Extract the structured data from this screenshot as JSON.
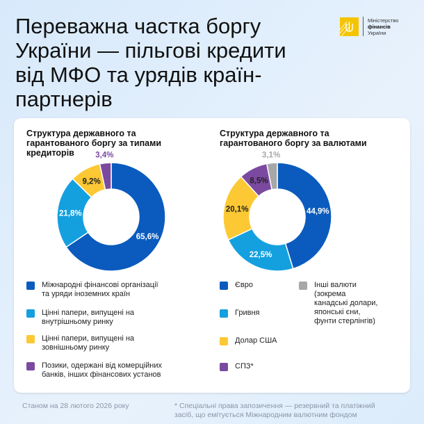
{
  "header": {
    "title": "Переважна частка боргу України — пільгові кредити від МФО та урядів країн-партнерів"
  },
  "logo": {
    "line1": "Міністерство",
    "line2": "фінансів",
    "line3": "України"
  },
  "colors": {
    "dark_blue": "#0a5bbd",
    "light_blue": "#14a0df",
    "yellow": "#fcc934",
    "purple": "#7b4aa0",
    "gray": "#a7a7a7"
  },
  "chart_data": [
    {
      "type": "pie",
      "title": "Структура державного та гарантованого боргу за типами кредиторів",
      "unit": "%",
      "slices": [
        {
          "label": "Міжнародні фінансові організації та уряди іноземних країн",
          "value": 65.6,
          "display": "65,6%",
          "color": "#0a5bbd"
        },
        {
          "label": "Цінні папери, випущені на внутрішньому ринку",
          "value": 21.8,
          "display": "21,8%",
          "color": "#14a0df"
        },
        {
          "label": "Цінні папери, випущені на зовнішньому ринку",
          "value": 9.2,
          "display": "9,2%",
          "color": "#fcc934"
        },
        {
          "label": "Позики, одержані від комерційних банків, інших фінансових установ",
          "value": 3.4,
          "display": "3,4%",
          "color": "#7b4aa0"
        }
      ]
    },
    {
      "type": "pie",
      "title": "Структура державного та гарантованого боргу за валютами",
      "unit": "%",
      "slices": [
        {
          "label": "Євро",
          "value": 44.9,
          "display": "44,9%",
          "color": "#0a5bbd"
        },
        {
          "label": "Гривня",
          "value": 22.5,
          "display": "22,5%",
          "color": "#14a0df"
        },
        {
          "label": "Долар США",
          "value": 20.1,
          "display": "20,1%",
          "color": "#fcc934"
        },
        {
          "label": "СПЗ*",
          "value": 8.5,
          "display": "8,5%",
          "color": "#7b4aa0"
        },
        {
          "label": "Інші валюти (зокрема канадські долари, японські єни, фунти стерлінгів)",
          "value": 3.1,
          "display": "3,1%",
          "color": "#a7a7a7"
        }
      ]
    }
  ],
  "footer": {
    "date": "Станом на 28 лютого 2026 року",
    "note": "* Спеціальні права запозичення — резервний та платіжний засіб, що емітується Міжнародним валютним фондом"
  }
}
